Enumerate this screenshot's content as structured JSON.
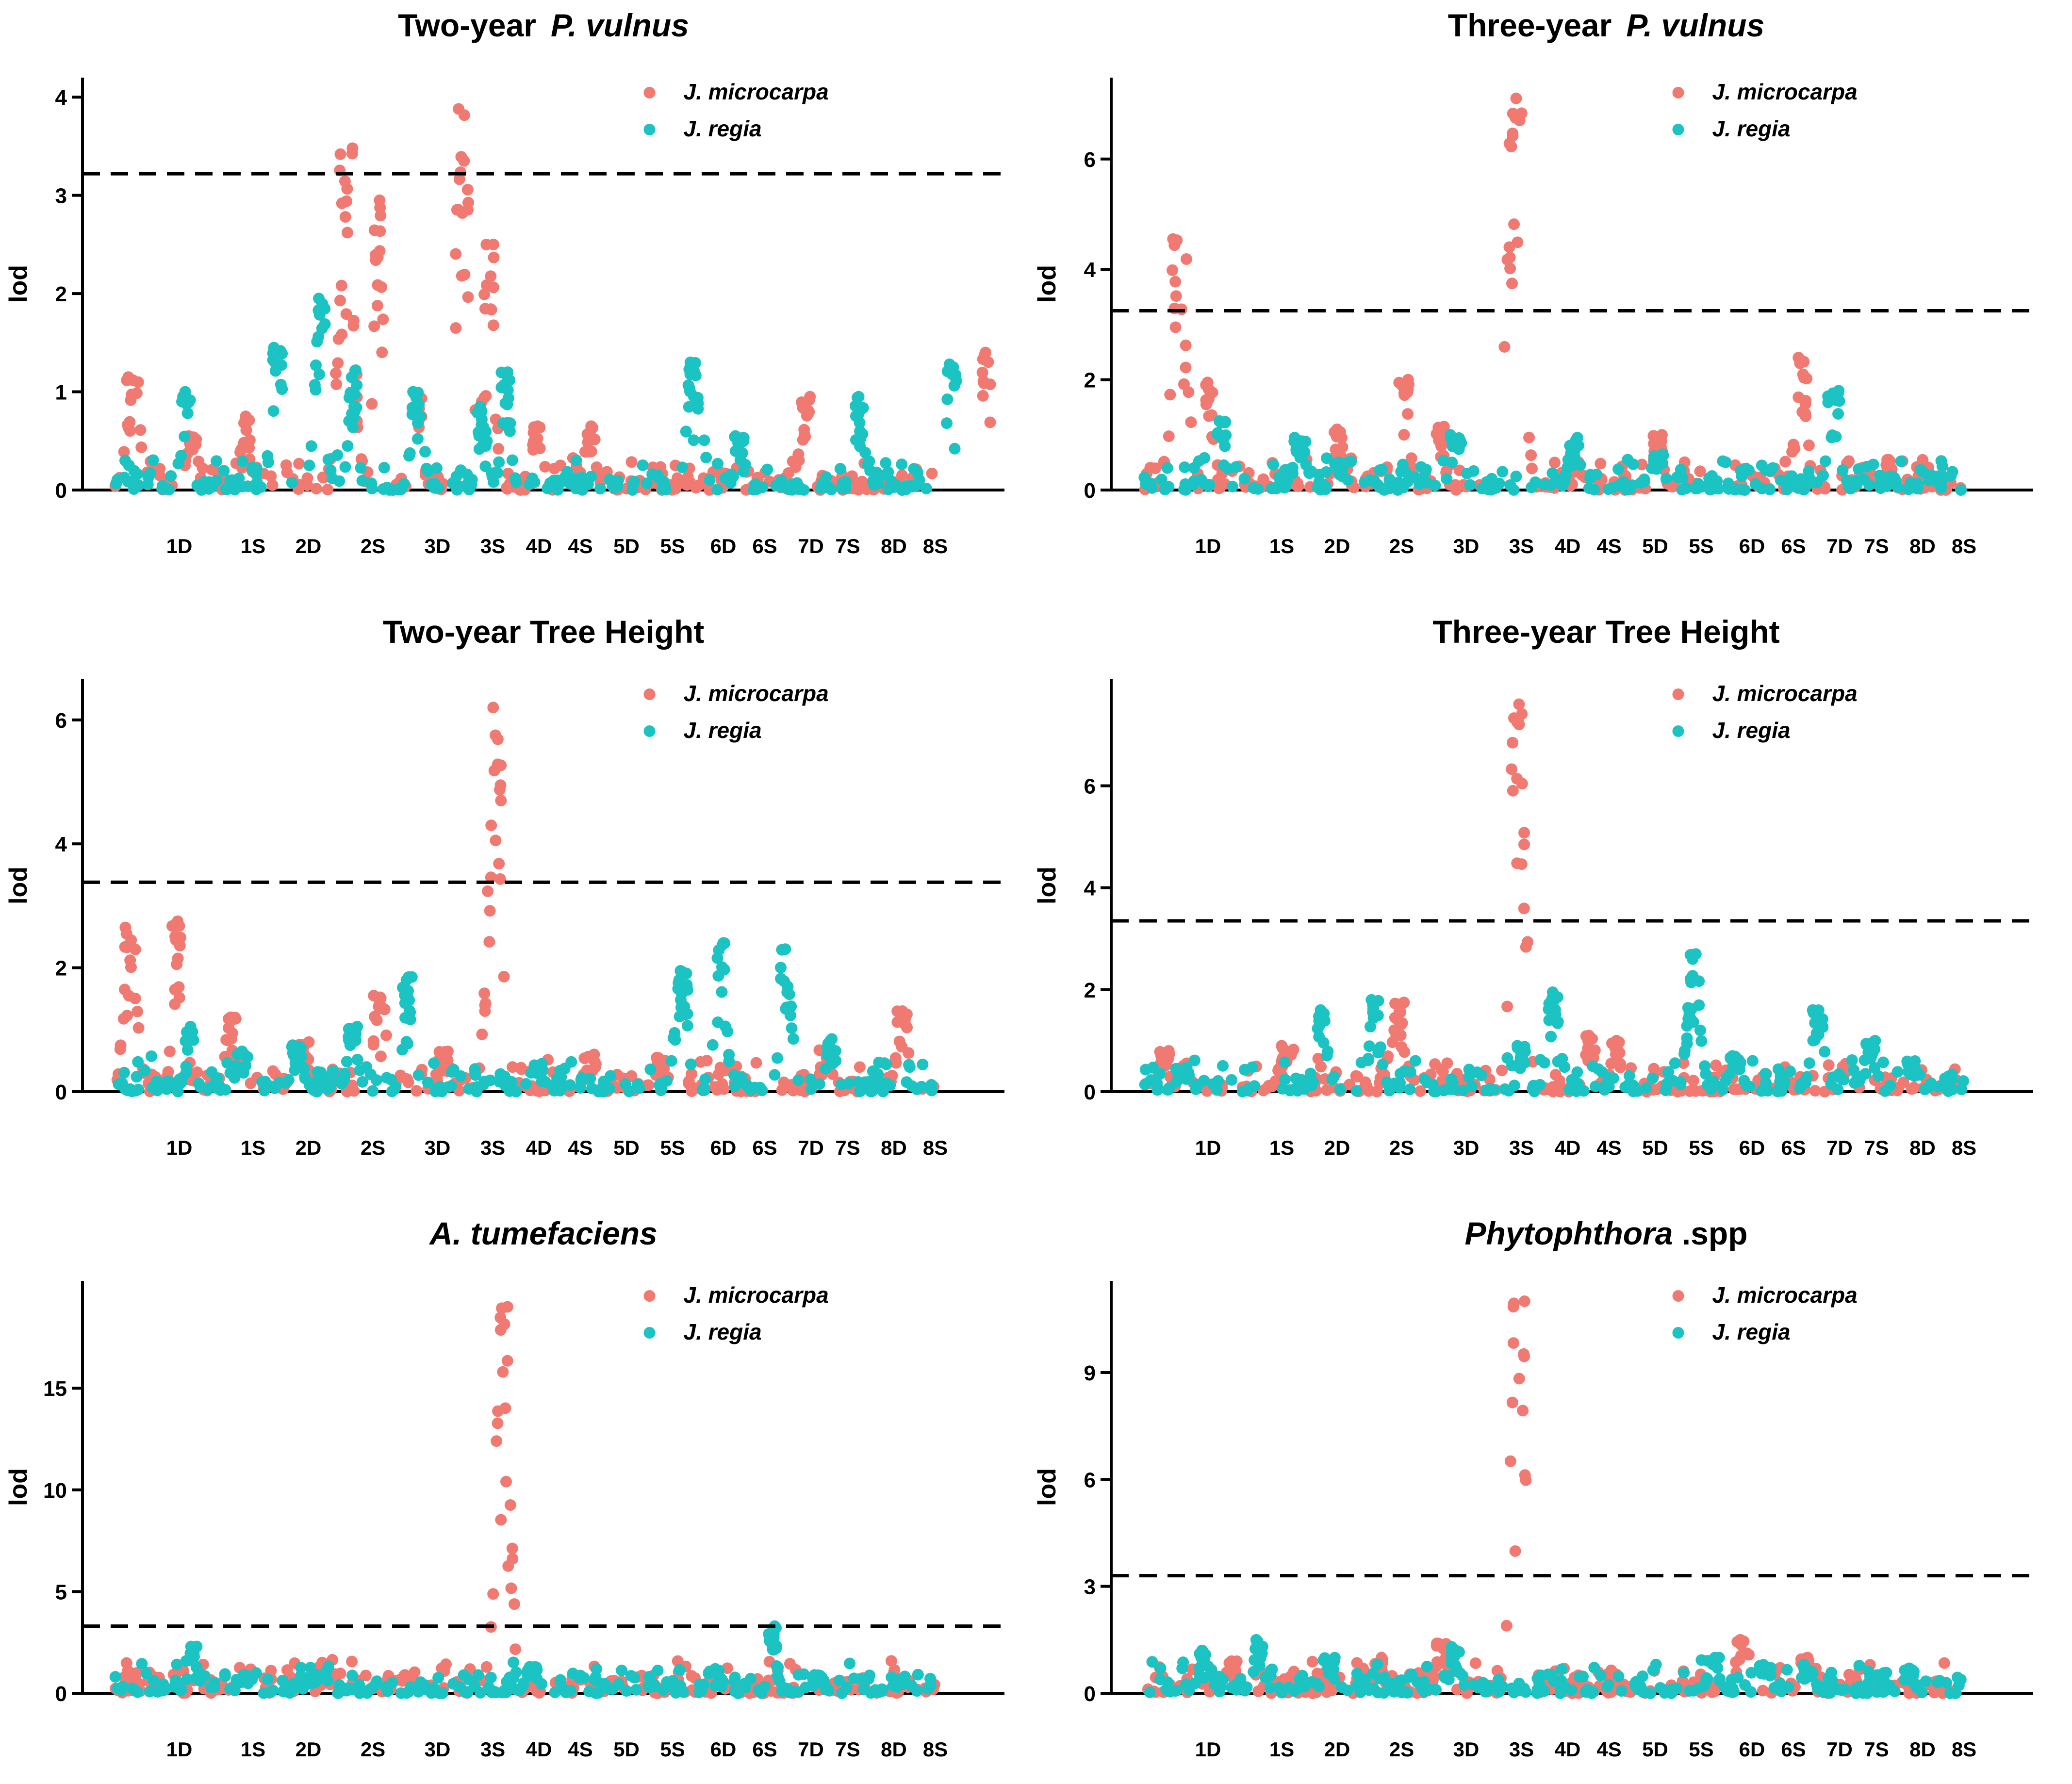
{
  "colors": {
    "microcarpa": "#F07A72",
    "regia": "#1CC3C3"
  },
  "chromosomes": [
    "1D",
    "1S",
    "2D",
    "2S",
    "3D",
    "3S",
    "4D",
    "4S",
    "5D",
    "5S",
    "6D",
    "6S",
    "7D",
    "7S",
    "8D",
    "8S"
  ],
  "legend": {
    "microcarpa": "J. microcarpa",
    "regia": "J. regia"
  },
  "chart_data": [
    {
      "type": "scatter",
      "title": "Two-year",
      "title_italic": "P. vulnus",
      "ylabel": "lod",
      "yticks": [
        "0",
        "1",
        "2",
        "3",
        "4"
      ],
      "ylim": [
        0,
        4.1
      ],
      "threshold": 3.22,
      "series": [
        {
          "name": "J. microcarpa",
          "peaks": [
            {
              "pos": 0.3,
              "value": 1.15,
              "width": 0.6
            },
            {
              "pos": 1.15,
              "value": 0.55,
              "width": 0.5
            },
            {
              "pos": 2.0,
              "value": 0.75,
              "width": 0.4
            },
            {
              "pos": 3.55,
              "value": 3.48,
              "width": 0.55
            },
            {
              "pos": 4.05,
              "value": 2.95,
              "width": 0.35
            },
            {
              "pos": 4.65,
              "value": 1.0,
              "width": 0.35
            },
            {
              "pos": 5.35,
              "value": 3.88,
              "width": 0.6
            },
            {
              "pos": 5.75,
              "value": 2.5,
              "width": 0.4
            },
            {
              "pos": 6.5,
              "value": 0.65,
              "width": 0.4
            },
            {
              "pos": 7.3,
              "value": 0.65,
              "width": 0.4
            },
            {
              "pos": 10.6,
              "value": 0.95,
              "width": 0.4
            },
            {
              "pos": 13.35,
              "value": 1.4,
              "width": 0.5
            }
          ]
        },
        {
          "name": "J. regia",
          "peaks": [
            {
              "pos": 1.1,
              "value": 1.0,
              "width": 0.35
            },
            {
              "pos": 2.5,
              "value": 1.45,
              "width": 0.45
            },
            {
              "pos": 3.15,
              "value": 1.95,
              "width": 0.4
            },
            {
              "pos": 3.65,
              "value": 1.22,
              "width": 0.35
            },
            {
              "pos": 4.65,
              "value": 1.0,
              "width": 0.45
            },
            {
              "pos": 5.65,
              "value": 0.85,
              "width": 0.4
            },
            {
              "pos": 6.0,
              "value": 1.2,
              "width": 0.35
            },
            {
              "pos": 8.9,
              "value": 1.3,
              "width": 0.55
            },
            {
              "pos": 9.6,
              "value": 0.55,
              "width": 0.4
            },
            {
              "pos": 11.45,
              "value": 0.95,
              "width": 0.45
            },
            {
              "pos": 12.85,
              "value": 1.28,
              "width": 0.4
            }
          ]
        }
      ]
    },
    {
      "type": "scatter",
      "title": "Three-year",
      "title_italic": "P. vulnus",
      "ylabel": "lod",
      "yticks": [
        "0",
        "2",
        "4",
        "6"
      ],
      "ylim": [
        0,
        7.3
      ],
      "threshold": 3.25,
      "series": [
        {
          "name": "J. microcarpa",
          "peaks": [
            {
              "pos": 0.55,
              "value": 4.55,
              "width": 0.55
            },
            {
              "pos": 1.0,
              "value": 1.95,
              "width": 0.3
            },
            {
              "pos": 3.0,
              "value": 1.1,
              "width": 0.45
            },
            {
              "pos": 4.0,
              "value": 2.0,
              "width": 0.4
            },
            {
              "pos": 4.55,
              "value": 1.15,
              "width": 0.35
            },
            {
              "pos": 5.7,
              "value": 7.1,
              "width": 0.6
            },
            {
              "pos": 7.9,
              "value": 1.0,
              "width": 0.35
            },
            {
              "pos": 10.1,
              "value": 2.4,
              "width": 0.45
            },
            {
              "pos": 11.45,
              "value": 0.55,
              "width": 0.3
            }
          ]
        },
        {
          "name": "J. regia",
          "peaks": [
            {
              "pos": 1.2,
              "value": 1.25,
              "width": 0.35
            },
            {
              "pos": 2.4,
              "value": 0.95,
              "width": 0.5
            },
            {
              "pos": 3.0,
              "value": 0.5,
              "width": 0.4
            },
            {
              "pos": 4.8,
              "value": 1.0,
              "width": 0.45
            },
            {
              "pos": 6.6,
              "value": 0.95,
              "width": 0.4
            },
            {
              "pos": 7.9,
              "value": 0.65,
              "width": 0.45
            },
            {
              "pos": 10.6,
              "value": 1.8,
              "width": 0.45
            },
            {
              "pos": 11.5,
              "value": 0.25,
              "width": 0.3
            }
          ]
        }
      ]
    },
    {
      "type": "scatter",
      "title": "Two-year Tree Height",
      "title_italic": "",
      "ylabel": "lod",
      "yticks": [
        "0",
        "2",
        "4",
        "6"
      ],
      "ylim": [
        0,
        6.5
      ],
      "threshold": 3.38,
      "series": [
        {
          "name": "J. microcarpa",
          "peaks": [
            {
              "pos": 0.25,
              "value": 2.65,
              "width": 0.5
            },
            {
              "pos": 0.95,
              "value": 2.75,
              "width": 0.35
            },
            {
              "pos": 1.8,
              "value": 1.2,
              "width": 0.45
            },
            {
              "pos": 2.9,
              "value": 0.8,
              "width": 0.5
            },
            {
              "pos": 4.05,
              "value": 1.55,
              "width": 0.6
            },
            {
              "pos": 5.05,
              "value": 0.65,
              "width": 0.35
            },
            {
              "pos": 5.85,
              "value": 6.2,
              "width": 0.55
            },
            {
              "pos": 7.3,
              "value": 0.6,
              "width": 0.45
            },
            {
              "pos": 8.4,
              "value": 0.55,
              "width": 0.4
            },
            {
              "pos": 10.9,
              "value": 0.7,
              "width": 0.45
            },
            {
              "pos": 12.1,
              "value": 1.3,
              "width": 0.45
            }
          ]
        },
        {
          "name": "J. regia",
          "peaks": [
            {
              "pos": 1.15,
              "value": 1.05,
              "width": 0.35
            },
            {
              "pos": 1.95,
              "value": 0.65,
              "width": 0.45
            },
            {
              "pos": 2.8,
              "value": 0.75,
              "width": 0.5
            },
            {
              "pos": 3.65,
              "value": 1.05,
              "width": 0.4
            },
            {
              "pos": 4.5,
              "value": 1.85,
              "width": 0.4
            },
            {
              "pos": 6.5,
              "value": 0.45,
              "width": 0.45
            },
            {
              "pos": 8.7,
              "value": 1.95,
              "width": 0.5
            },
            {
              "pos": 9.3,
              "value": 2.4,
              "width": 0.4
            },
            {
              "pos": 10.3,
              "value": 2.3,
              "width": 0.45
            },
            {
              "pos": 11.0,
              "value": 0.85,
              "width": 0.45
            }
          ]
        }
      ]
    },
    {
      "type": "scatter",
      "title": "Three-year Tree Height",
      "title_italic": "",
      "ylabel": "lod",
      "yticks": [
        "0",
        "2",
        "4",
        "6"
      ],
      "ylim": [
        0,
        7.9
      ],
      "threshold": 3.35,
      "series": [
        {
          "name": "J. microcarpa",
          "peaks": [
            {
              "pos": 0.3,
              "value": 0.8,
              "width": 0.5
            },
            {
              "pos": 2.2,
              "value": 0.9,
              "width": 0.55
            },
            {
              "pos": 3.9,
              "value": 1.75,
              "width": 0.6
            },
            {
              "pos": 5.75,
              "value": 7.6,
              "width": 0.55
            },
            {
              "pos": 6.85,
              "value": 1.1,
              "width": 0.45
            },
            {
              "pos": 7.25,
              "value": 1.0,
              "width": 0.35
            },
            {
              "pos": 10.8,
              "value": 0.55,
              "width": 0.5
            }
          ]
        },
        {
          "name": "J. regia",
          "peaks": [
            {
              "pos": 0.6,
              "value": 0.45,
              "width": 0.5
            },
            {
              "pos": 2.75,
              "value": 1.6,
              "width": 0.4
            },
            {
              "pos": 3.55,
              "value": 1.8,
              "width": 0.4
            },
            {
              "pos": 5.8,
              "value": 0.9,
              "width": 0.3
            },
            {
              "pos": 6.3,
              "value": 1.95,
              "width": 0.45
            },
            {
              "pos": 8.45,
              "value": 2.7,
              "width": 0.45
            },
            {
              "pos": 9.1,
              "value": 0.7,
              "width": 0.45
            },
            {
              "pos": 10.35,
              "value": 1.6,
              "width": 0.45
            },
            {
              "pos": 11.15,
              "value": 1.0,
              "width": 0.45
            },
            {
              "pos": 11.8,
              "value": 0.6,
              "width": 0.4
            }
          ]
        }
      ]
    },
    {
      "type": "scatter",
      "title": "A. tumefaciens",
      "title_italic_full": true,
      "title_italic": "",
      "ylabel": "lod",
      "yticks": [
        "0",
        "5",
        "10",
        "15"
      ],
      "ylim": [
        0,
        19.8
      ],
      "threshold": 3.3,
      "series": [
        {
          "name": "J. microcarpa",
          "peaks": [
            {
              "pos": 0.6,
              "value": 0.8,
              "width": 0.5
            },
            {
              "pos": 3.3,
              "value": 1.0,
              "width": 0.5
            },
            {
              "pos": 4.5,
              "value": 0.9,
              "width": 0.5
            },
            {
              "pos": 5.95,
              "value": 19.0,
              "width": 0.55
            },
            {
              "pos": 7.7,
              "value": 0.6,
              "width": 0.5
            }
          ]
        },
        {
          "name": "J. regia",
          "peaks": [
            {
              "pos": 1.2,
              "value": 2.3,
              "width": 0.4
            },
            {
              "pos": 2.0,
              "value": 0.9,
              "width": 0.4
            },
            {
              "pos": 3.0,
              "value": 0.8,
              "width": 0.45
            },
            {
              "pos": 6.4,
              "value": 1.3,
              "width": 0.45
            },
            {
              "pos": 9.2,
              "value": 1.2,
              "width": 0.4
            },
            {
              "pos": 10.1,
              "value": 3.3,
              "width": 0.3
            },
            {
              "pos": 10.8,
              "value": 0.9,
              "width": 0.4
            }
          ]
        }
      ]
    },
    {
      "type": "scatter",
      "title": "Phytophthora",
      "title_suffix": " .spp",
      "title_italic": "",
      "ylabel": "lod",
      "yticks": [
        "0",
        "3",
        "6",
        "9"
      ],
      "ylim": [
        0,
        11.3
      ],
      "threshold": 3.3,
      "series": [
        {
          "name": "J. microcarpa",
          "peaks": [
            {
              "pos": 1.35,
              "value": 0.9,
              "width": 0.45
            },
            {
              "pos": 3.6,
              "value": 1.0,
              "width": 0.5
            },
            {
              "pos": 4.6,
              "value": 1.4,
              "width": 0.5
            },
            {
              "pos": 5.75,
              "value": 11.0,
              "width": 0.55
            },
            {
              "pos": 9.2,
              "value": 1.5,
              "width": 0.5
            },
            {
              "pos": 10.15,
              "value": 1.0,
              "width": 0.4
            }
          ]
        },
        {
          "name": "J. regia",
          "peaks": [
            {
              "pos": 0.95,
              "value": 1.2,
              "width": 0.45
            },
            {
              "pos": 1.75,
              "value": 1.5,
              "width": 0.4
            },
            {
              "pos": 2.85,
              "value": 1.0,
              "width": 0.45
            },
            {
              "pos": 4.8,
              "value": 1.3,
              "width": 0.4
            },
            {
              "pos": 8.75,
              "value": 1.0,
              "width": 0.45
            },
            {
              "pos": 9.55,
              "value": 0.8,
              "width": 0.45
            },
            {
              "pos": 10.2,
              "value": 0.8,
              "width": 0.45
            },
            {
              "pos": 11.75,
              "value": 0.7,
              "width": 0.4
            }
          ]
        }
      ]
    }
  ]
}
